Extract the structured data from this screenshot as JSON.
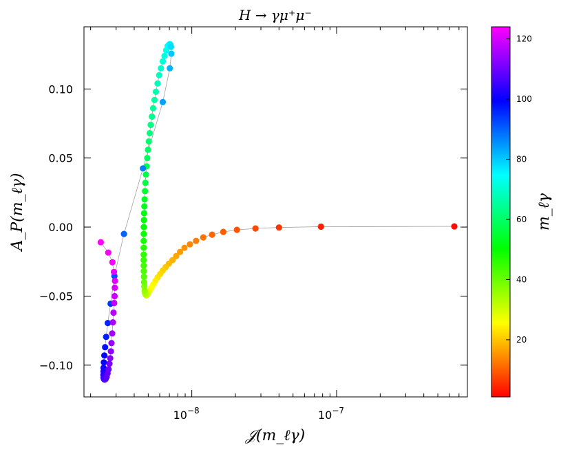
{
  "chart_data": {
    "type": "scatter",
    "title": "H → γμ⁺μ⁻",
    "xlabel": "𝒥(m_ℓγ)",
    "ylabel": "A_P(m_ℓγ)",
    "xscale": "log",
    "xlim": [
      1.8e-09,
      8e-07
    ],
    "ylim": [
      -0.123,
      0.145
    ],
    "x_tick_labels": [
      {
        "value": 1e-08,
        "base": "10",
        "exp": "−8"
      },
      {
        "value": 1e-07,
        "base": "10",
        "exp": "−7"
      }
    ],
    "y_ticks": [
      -0.1,
      -0.05,
      0.0,
      0.05,
      0.1
    ],
    "y_tick_labels": [
      "−0.10",
      "−0.05",
      "0.00",
      "0.05",
      "0.10"
    ],
    "colorbar": {
      "label": "m_ℓγ",
      "range": [
        1,
        124
      ],
      "ticks": [
        20,
        40,
        60,
        80,
        100,
        120
      ],
      "colormap": [
        "#ff0000",
        "#ff8000",
        "#ffff00",
        "#80ff00",
        "#00ff00",
        "#00ff80",
        "#00ffff",
        "#0080ff",
        "#0000ff",
        "#8000ff",
        "#ff00ff"
      ]
    },
    "line_color": "#a0a0a0",
    "series": [
      {
        "name": "H → γμ⁺μ⁻",
        "points": [
          {
            "x": 6.5e-07,
            "y": 0.0005,
            "c": 2
          },
          {
            "x": 7.8e-08,
            "y": 0.0003,
            "c": 4
          },
          {
            "x": 4e-08,
            "y": -0.0003,
            "c": 6
          },
          {
            "x": 2.75e-08,
            "y": -0.001,
            "c": 8
          },
          {
            "x": 2.05e-08,
            "y": -0.002,
            "c": 9
          },
          {
            "x": 1.65e-08,
            "y": -0.0035,
            "c": 10
          },
          {
            "x": 1.38e-08,
            "y": -0.0055,
            "c": 11
          },
          {
            "x": 1.2e-08,
            "y": -0.0075,
            "c": 12
          },
          {
            "x": 1.07e-08,
            "y": -0.01,
            "c": 13
          },
          {
            "x": 9.7e-09,
            "y": -0.0125,
            "c": 14
          },
          {
            "x": 8.9e-09,
            "y": -0.015,
            "c": 15
          },
          {
            "x": 8.3e-09,
            "y": -0.018,
            "c": 16
          },
          {
            "x": 7.8e-09,
            "y": -0.021,
            "c": 17
          },
          {
            "x": 7.35e-09,
            "y": -0.024,
            "c": 18
          },
          {
            "x": 6.95e-09,
            "y": -0.0265,
            "c": 19
          },
          {
            "x": 6.6e-09,
            "y": -0.029,
            "c": 20
          },
          {
            "x": 6.3e-09,
            "y": -0.0315,
            "c": 21
          },
          {
            "x": 6.05e-09,
            "y": -0.034,
            "c": 22
          },
          {
            "x": 5.8e-09,
            "y": -0.0365,
            "c": 23
          },
          {
            "x": 5.6e-09,
            "y": -0.039,
            "c": 24
          },
          {
            "x": 5.42e-09,
            "y": -0.0415,
            "c": 25
          },
          {
            "x": 5.26e-09,
            "y": -0.044,
            "c": 26
          },
          {
            "x": 5.12e-09,
            "y": -0.046,
            "c": 27
          },
          {
            "x": 5e-09,
            "y": -0.048,
            "c": 28
          },
          {
            "x": 4.92e-09,
            "y": -0.049,
            "c": 29
          },
          {
            "x": 4.85e-09,
            "y": -0.0495,
            "c": 30
          },
          {
            "x": 4.8e-09,
            "y": -0.049,
            "c": 32
          },
          {
            "x": 4.75e-09,
            "y": -0.048,
            "c": 34
          },
          {
            "x": 4.72e-09,
            "y": -0.046,
            "c": 36
          },
          {
            "x": 4.7e-09,
            "y": -0.043,
            "c": 38
          },
          {
            "x": 4.68e-09,
            "y": -0.04,
            "c": 40
          },
          {
            "x": 4.67e-09,
            "y": -0.036,
            "c": 42
          },
          {
            "x": 4.66e-09,
            "y": -0.032,
            "c": 43
          },
          {
            "x": 4.655e-09,
            "y": -0.028,
            "c": 44
          },
          {
            "x": 4.65e-09,
            "y": -0.024,
            "c": 45
          },
          {
            "x": 4.65e-09,
            "y": -0.02,
            "c": 46
          },
          {
            "x": 4.65e-09,
            "y": -0.015,
            "c": 47
          },
          {
            "x": 4.65e-09,
            "y": -0.01,
            "c": 48
          },
          {
            "x": 4.66e-09,
            "y": -0.005,
            "c": 49
          },
          {
            "x": 4.66e-09,
            "y": 0.0,
            "c": 50
          },
          {
            "x": 4.67e-09,
            "y": 0.005,
            "c": 51
          },
          {
            "x": 4.68e-09,
            "y": 0.01,
            "c": 52
          },
          {
            "x": 4.7e-09,
            "y": 0.015,
            "c": 53
          },
          {
            "x": 4.72e-09,
            "y": 0.02,
            "c": 54
          },
          {
            "x": 4.75e-09,
            "y": 0.026,
            "c": 55
          },
          {
            "x": 4.78e-09,
            "y": 0.032,
            "c": 56
          },
          {
            "x": 4.82e-09,
            "y": 0.038,
            "c": 57
          },
          {
            "x": 4.87e-09,
            "y": 0.044,
            "c": 58
          },
          {
            "x": 4.92e-09,
            "y": 0.05,
            "c": 59
          },
          {
            "x": 4.98e-09,
            "y": 0.056,
            "c": 60
          },
          {
            "x": 5.05e-09,
            "y": 0.062,
            "c": 61
          },
          {
            "x": 5.12e-09,
            "y": 0.068,
            "c": 62
          },
          {
            "x": 5.2e-09,
            "y": 0.074,
            "c": 63
          },
          {
            "x": 5.3e-09,
            "y": 0.08,
            "c": 64
          },
          {
            "x": 5.4e-09,
            "y": 0.086,
            "c": 65
          },
          {
            "x": 5.52e-09,
            "y": 0.092,
            "c": 66
          },
          {
            "x": 5.65e-09,
            "y": 0.098,
            "c": 67
          },
          {
            "x": 5.8e-09,
            "y": 0.104,
            "c": 68
          },
          {
            "x": 5.95e-09,
            "y": 0.11,
            "c": 69
          },
          {
            "x": 6.12e-09,
            "y": 0.115,
            "c": 70
          },
          {
            "x": 6.3e-09,
            "y": 0.12,
            "c": 71
          },
          {
            "x": 6.48e-09,
            "y": 0.124,
            "c": 72
          },
          {
            "x": 6.65e-09,
            "y": 0.128,
            "c": 73
          },
          {
            "x": 6.8e-09,
            "y": 0.131,
            "c": 74
          },
          {
            "x": 6.95e-09,
            "y": 0.132,
            "c": 75
          },
          {
            "x": 7.05e-09,
            "y": 0.1325,
            "c": 76
          },
          {
            "x": 7.12e-09,
            "y": 0.132,
            "c": 77
          },
          {
            "x": 7.18e-09,
            "y": 0.1305,
            "c": 78
          },
          {
            "x": 7.22e-09,
            "y": 0.1255,
            "c": 80
          },
          {
            "x": 7.05e-09,
            "y": 0.115,
            "c": 82
          },
          {
            "x": 6.3e-09,
            "y": 0.0905,
            "c": 84
          },
          {
            "x": 4.6e-09,
            "y": 0.0425,
            "c": 87
          },
          {
            "x": 3.4e-09,
            "y": -0.005,
            "c": 90
          },
          {
            "x": 2.92e-09,
            "y": -0.0355,
            "c": 92
          },
          {
            "x": 2.75e-09,
            "y": -0.0555,
            "c": 94
          },
          {
            "x": 2.63e-09,
            "y": -0.0695,
            "c": 96
          },
          {
            "x": 2.56e-09,
            "y": -0.0795,
            "c": 97
          },
          {
            "x": 2.52e-09,
            "y": -0.087,
            "c": 98
          },
          {
            "x": 2.49e-09,
            "y": -0.093,
            "c": 99
          },
          {
            "x": 2.47e-09,
            "y": -0.098,
            "c": 100
          },
          {
            "x": 2.46e-09,
            "y": -0.102,
            "c": 101
          },
          {
            "x": 2.455e-09,
            "y": -0.1045,
            "c": 102
          },
          {
            "x": 2.45e-09,
            "y": -0.107,
            "c": 103
          },
          {
            "x": 2.455e-09,
            "y": -0.109,
            "c": 104
          },
          {
            "x": 2.47e-09,
            "y": -0.11,
            "c": 105
          },
          {
            "x": 2.5e-09,
            "y": -0.1105,
            "c": 106
          },
          {
            "x": 2.54e-09,
            "y": -0.11,
            "c": 107
          },
          {
            "x": 2.58e-09,
            "y": -0.1085,
            "c": 108
          },
          {
            "x": 2.62e-09,
            "y": -0.106,
            "c": 109
          },
          {
            "x": 2.66e-09,
            "y": -0.103,
            "c": 110
          },
          {
            "x": 2.7e-09,
            "y": -0.099,
            "c": 111
          },
          {
            "x": 2.73e-09,
            "y": -0.095,
            "c": 112
          },
          {
            "x": 2.76e-09,
            "y": -0.09,
            "c": 113
          },
          {
            "x": 2.79e-09,
            "y": -0.084,
            "c": 114
          },
          {
            "x": 2.82e-09,
            "y": -0.077,
            "c": 115
          },
          {
            "x": 2.85e-09,
            "y": -0.069,
            "c": 116
          },
          {
            "x": 2.88e-09,
            "y": -0.062,
            "c": 117
          },
          {
            "x": 2.91e-09,
            "y": -0.055,
            "c": 118
          },
          {
            "x": 2.93e-09,
            "y": -0.05,
            "c": 119
          },
          {
            "x": 2.94e-09,
            "y": -0.044,
            "c": 120
          },
          {
            "x": 2.95e-09,
            "y": -0.039,
            "c": 121
          },
          {
            "x": 2.9e-09,
            "y": -0.0325,
            "c": 122
          },
          {
            "x": 2.83e-09,
            "y": -0.0255,
            "c": 123
          },
          {
            "x": 2.65e-09,
            "y": -0.0185,
            "c": 123.5
          },
          {
            "x": 2.35e-09,
            "y": -0.011,
            "c": 124
          }
        ]
      }
    ]
  }
}
